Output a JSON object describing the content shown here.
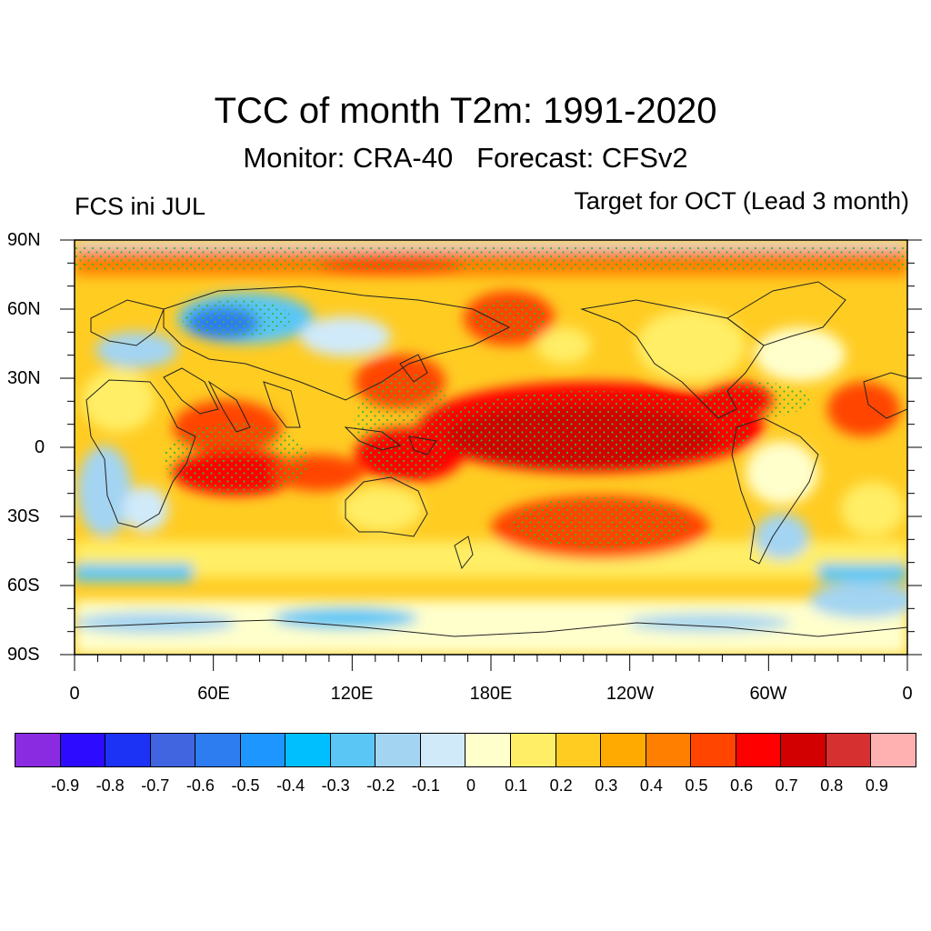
{
  "header": {
    "title": "TCC of month T2m: 1991-2020",
    "subtitle": "Monitor: CRA-40   Forecast: CFSv2",
    "left_label": "FCS ini JUL",
    "right_label": "Target for OCT (Lead 3 month)"
  },
  "map": {
    "lat_ticks": [
      "90N",
      "60N",
      "30N",
      "0",
      "30S",
      "60S",
      "90S"
    ],
    "lon_ticks": [
      "0",
      "60E",
      "120E",
      "180E",
      "120W",
      "60W",
      "0"
    ]
  },
  "colorbar": {
    "colors": [
      "#8a2be2",
      "#2c0bff",
      "#1c32f5",
      "#4164e1",
      "#2d7cf0",
      "#1e96ff",
      "#00bfff",
      "#5ac6f5",
      "#a3d4f2",
      "#d0eafa",
      "#ffffcc",
      "#ffee66",
      "#ffcc22",
      "#ffaa00",
      "#ff7f00",
      "#ff4500",
      "#ff0000",
      "#d20000",
      "#d63030",
      "#ffb0b0"
    ],
    "labels": [
      "-0.9",
      "-0.8",
      "-0.7",
      "-0.6",
      "-0.5",
      "-0.4",
      "-0.3",
      "-0.2",
      "-0.1",
      "0",
      "0.1",
      "0.2",
      "0.3",
      "0.4",
      "0.5",
      "0.6",
      "0.7",
      "0.8",
      "0.9"
    ]
  }
}
